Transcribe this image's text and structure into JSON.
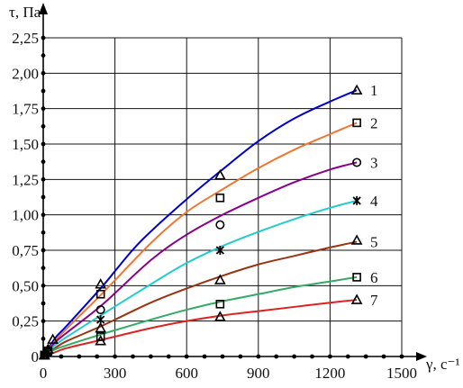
{
  "chart_data": {
    "type": "line",
    "xlabel": "γ, с⁻¹",
    "ylabel": "τ, Па",
    "xlim": [
      0,
      1500
    ],
    "ylim": [
      0,
      2.25
    ],
    "x_ticks": [
      0,
      300,
      600,
      900,
      1200,
      1500
    ],
    "x_tick_labels": [
      "0",
      "300",
      "600",
      "900",
      "1200",
      "1500"
    ],
    "y_ticks": [
      0,
      0.25,
      0.5,
      0.75,
      1.0,
      1.25,
      1.5,
      1.75,
      2.0,
      2.25
    ],
    "y_tick_labels": [
      "0",
      "0,25",
      "0,50",
      "0,75",
      "1,00",
      "1,25",
      "1,50",
      "1,75",
      "2,00",
      "2,25"
    ],
    "grid": true,
    "series": [
      {
        "name": "1",
        "color": "#0000cc",
        "marker": "triangle",
        "curve": {
          "x": [
            0,
            50,
            100,
            250,
            400,
            600,
            750,
            900,
            1050,
            1200,
            1312
          ],
          "y": [
            0,
            0.13,
            0.22,
            0.5,
            0.8,
            1.11,
            1.32,
            1.52,
            1.68,
            1.8,
            1.88
          ]
        },
        "points": {
          "x": [
            5,
            20,
            40,
            240,
            740,
            1312
          ],
          "y": [
            0.01,
            0.05,
            0.12,
            0.51,
            1.28,
            1.88
          ]
        }
      },
      {
        "name": "2",
        "color": "#ee7733",
        "marker": "square",
        "curve": {
          "x": [
            0,
            50,
            100,
            250,
            450,
            600,
            750,
            900,
            1050,
            1200,
            1312
          ],
          "y": [
            0,
            0.11,
            0.2,
            0.45,
            0.8,
            1.02,
            1.18,
            1.33,
            1.46,
            1.57,
            1.65
          ]
        },
        "points": {
          "x": [
            5,
            20,
            240,
            740,
            1312
          ],
          "y": [
            0.01,
            0.04,
            0.44,
            1.12,
            1.65
          ]
        }
      },
      {
        "name": "3",
        "color": "#880088",
        "marker": "circle",
        "curve": {
          "x": [
            0,
            50,
            100,
            250,
            450,
            600,
            750,
            900,
            1050,
            1200,
            1312
          ],
          "y": [
            0,
            0.1,
            0.17,
            0.37,
            0.68,
            0.86,
            1.0,
            1.12,
            1.23,
            1.32,
            1.37
          ]
        },
        "points": {
          "x": [
            5,
            20,
            240,
            740,
            1312
          ],
          "y": [
            0.01,
            0.03,
            0.33,
            0.93,
            1.37
          ]
        }
      },
      {
        "name": "4",
        "color": "#22cccc",
        "marker": "star",
        "curve": {
          "x": [
            0,
            50,
            100,
            250,
            450,
            600,
            750,
            900,
            1050,
            1200,
            1312
          ],
          "y": [
            0,
            0.08,
            0.14,
            0.3,
            0.51,
            0.66,
            0.78,
            0.88,
            0.97,
            1.05,
            1.1
          ]
        },
        "points": {
          "x": [
            5,
            20,
            240,
            740,
            1312
          ],
          "y": [
            0.01,
            0.03,
            0.26,
            0.75,
            1.1
          ]
        }
      },
      {
        "name": "5",
        "color": "#993311",
        "marker": "triangle",
        "curve": {
          "x": [
            0,
            50,
            100,
            250,
            450,
            600,
            750,
            900,
            1050,
            1200,
            1312
          ],
          "y": [
            0,
            0.06,
            0.11,
            0.22,
            0.38,
            0.48,
            0.57,
            0.65,
            0.71,
            0.77,
            0.81
          ]
        },
        "points": {
          "x": [
            5,
            240,
            740,
            1312
          ],
          "y": [
            0.01,
            0.2,
            0.54,
            0.82
          ]
        }
      },
      {
        "name": "6",
        "color": "#33aa66",
        "marker": "square",
        "curve": {
          "x": [
            0,
            50,
            100,
            250,
            450,
            600,
            750,
            900,
            1050,
            1200,
            1312
          ],
          "y": [
            0,
            0.05,
            0.08,
            0.16,
            0.26,
            0.33,
            0.39,
            0.44,
            0.49,
            0.53,
            0.56
          ]
        },
        "points": {
          "x": [
            5,
            240,
            740,
            1312
          ],
          "y": [
            0.01,
            0.14,
            0.37,
            0.56
          ]
        }
      },
      {
        "name": "7",
        "color": "#dd2222",
        "marker": "triangle",
        "curve": {
          "x": [
            0,
            50,
            100,
            250,
            450,
            600,
            750,
            900,
            1050,
            1200,
            1312
          ],
          "y": [
            0,
            0.03,
            0.06,
            0.12,
            0.2,
            0.25,
            0.29,
            0.32,
            0.35,
            0.38,
            0.4
          ]
        },
        "points": {
          "x": [
            5,
            240,
            740,
            1312
          ],
          "y": [
            0.01,
            0.11,
            0.28,
            0.4
          ]
        }
      }
    ]
  }
}
